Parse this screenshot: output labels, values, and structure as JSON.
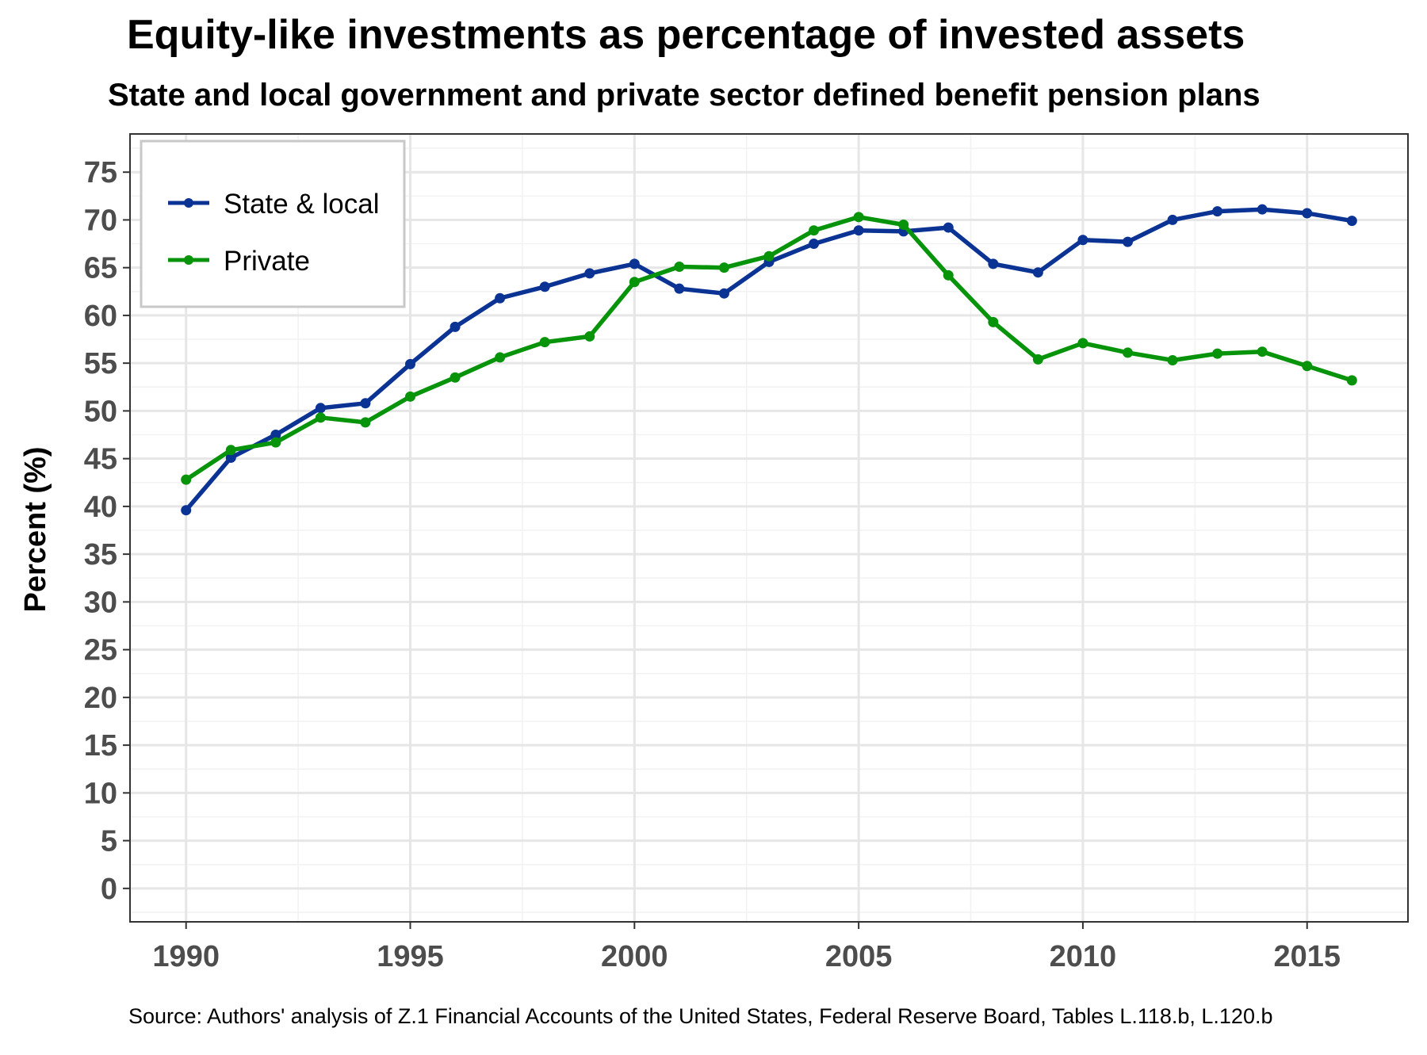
{
  "chart_data": {
    "type": "line",
    "title": "Equity-like investments as percentage of invested assets",
    "subtitle": "State and local government and private sector defined benefit pension plans",
    "ylabel": "Percent (%)",
    "xlabel": "",
    "caption": "Source: Authors' analysis of Z.1 Financial Accounts of the United States, Federal Reserve Board, Tables L.118.b, L.120.b",
    "xlim": [
      1988.75,
      2017.25
    ],
    "ylim": [
      -3.5,
      79
    ],
    "x_ticks": [
      1990,
      1995,
      2000,
      2005,
      2010,
      2015
    ],
    "y_ticks": [
      0,
      5,
      10,
      15,
      20,
      25,
      30,
      35,
      40,
      45,
      50,
      55,
      60,
      65,
      70,
      75
    ],
    "grid": true,
    "legend_position": "top-left",
    "x": [
      1990,
      1991,
      1992,
      1993,
      1994,
      1995,
      1996,
      1997,
      1998,
      1999,
      2000,
      2001,
      2002,
      2003,
      2004,
      2005,
      2006,
      2007,
      2008,
      2009,
      2010,
      2011,
      2012,
      2013,
      2014,
      2015,
      2016
    ],
    "series": [
      {
        "name": "State & local",
        "color": "#0b3394",
        "values": [
          39.6,
          45.1,
          47.5,
          50.3,
          50.8,
          54.9,
          58.8,
          61.8,
          63.0,
          64.4,
          65.4,
          62.8,
          62.3,
          65.6,
          67.5,
          68.9,
          68.8,
          69.2,
          65.4,
          64.5,
          67.9,
          67.7,
          70.0,
          70.9,
          71.1,
          70.7,
          69.9
        ]
      },
      {
        "name": "Private",
        "color": "#07930a",
        "values": [
          42.8,
          45.9,
          46.7,
          49.3,
          48.8,
          51.5,
          53.5,
          55.6,
          57.2,
          57.8,
          63.5,
          65.1,
          65.0,
          66.2,
          68.9,
          70.3,
          69.5,
          64.2,
          59.3,
          55.4,
          57.1,
          56.1,
          55.3,
          56.0,
          56.2,
          54.7,
          53.2
        ]
      }
    ]
  }
}
